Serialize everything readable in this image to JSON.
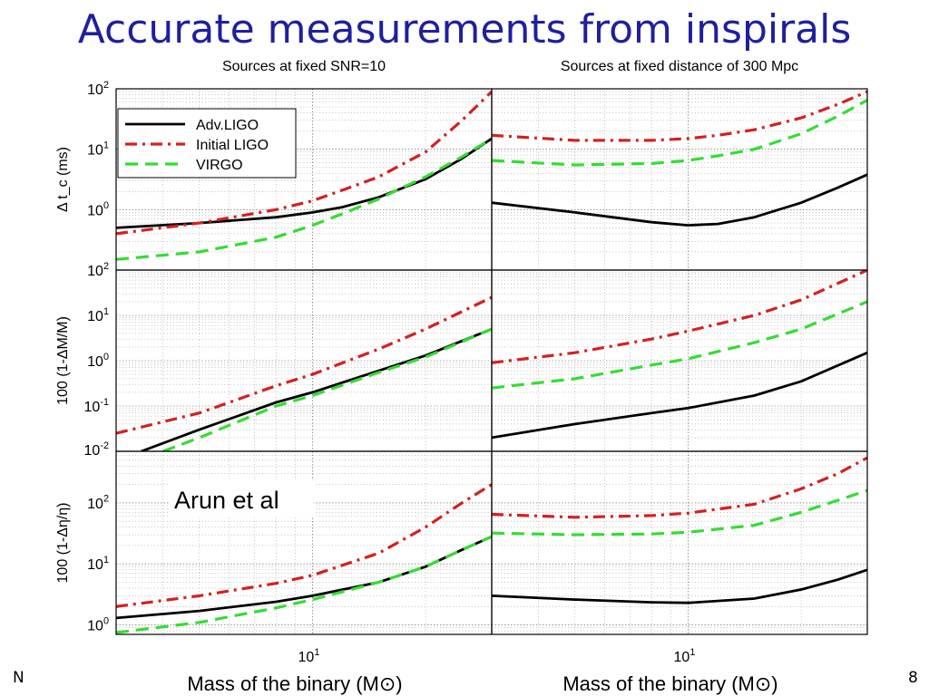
{
  "slide": {
    "title": "Accurate measurements from inspirals",
    "annotation": "Arun et al",
    "footer_left": "N",
    "footer_right": "8"
  },
  "colors": {
    "title": "#1f1f9f",
    "adv_ligo": "#000000",
    "initial_ligo": "#d42020",
    "virgo": "#33dd33"
  },
  "chart_data": [
    {
      "type": "line",
      "panel": "top-left",
      "title": "Sources at fixed SNR=10",
      "ylabel": "Δ t_c (ms)",
      "xscale": "log",
      "yscale": "log",
      "xlim": [
        3,
        30
      ],
      "ylim": [
        0.1,
        100
      ],
      "ytick_labels": [
        "10^0",
        "10^1",
        "10^2"
      ],
      "grid": true,
      "legend": "top-left",
      "legend_entries": [
        "Adv.LIGO",
        "Initial LIGO",
        "VIRGO"
      ],
      "series": [
        {
          "name": "Adv.LIGO",
          "x": [
            3,
            5,
            8,
            10,
            12,
            15,
            20,
            25,
            30
          ],
          "y": [
            0.5,
            0.6,
            0.75,
            0.9,
            1.1,
            1.6,
            3.2,
            7,
            15
          ]
        },
        {
          "name": "Initial LIGO",
          "x": [
            3,
            5,
            8,
            10,
            12,
            15,
            20,
            25,
            30
          ],
          "y": [
            0.4,
            0.6,
            1.0,
            1.4,
            2.1,
            3.5,
            9,
            30,
            90
          ]
        },
        {
          "name": "VIRGO",
          "x": [
            3,
            5,
            8,
            10,
            12,
            15,
            20,
            25,
            30
          ],
          "y": [
            0.15,
            0.2,
            0.35,
            0.55,
            0.85,
            1.5,
            3.5,
            7.5,
            15
          ]
        }
      ]
    },
    {
      "type": "line",
      "panel": "top-right",
      "title": "Sources at fixed distance of 300 Mpc",
      "xscale": "log",
      "yscale": "log",
      "xlim": [
        3,
        30
      ],
      "ylim": [
        0.1,
        100
      ],
      "grid": true,
      "series": [
        {
          "name": "Adv.LIGO",
          "x": [
            3,
            5,
            8,
            10,
            12,
            15,
            20,
            25,
            30
          ],
          "y": [
            1.3,
            0.9,
            0.62,
            0.55,
            0.58,
            0.75,
            1.3,
            2.3,
            3.8
          ]
        },
        {
          "name": "Initial LIGO",
          "x": [
            3,
            5,
            8,
            10,
            12,
            15,
            20,
            25,
            30
          ],
          "y": [
            17,
            14,
            14,
            15,
            17,
            21,
            33,
            55,
            90
          ]
        },
        {
          "name": "VIRGO",
          "x": [
            3,
            5,
            8,
            10,
            12,
            15,
            20,
            25,
            30
          ],
          "y": [
            6.5,
            5.5,
            5.8,
            6.5,
            7.8,
            10,
            18,
            35,
            65
          ]
        }
      ]
    },
    {
      "type": "line",
      "panel": "middle-left",
      "ylabel": "100 (1-ΔM/M)",
      "xscale": "log",
      "yscale": "log",
      "xlim": [
        3,
        30
      ],
      "ylim": [
        0.01,
        100
      ],
      "ytick_labels": [
        "10^-2",
        "10^-1",
        "10^0",
        "10^1",
        "10^2"
      ],
      "grid": true,
      "series": [
        {
          "name": "Adv.LIGO",
          "x": [
            3.5,
            5,
            8,
            10,
            15,
            20,
            30
          ],
          "y": [
            0.01,
            0.03,
            0.12,
            0.2,
            0.6,
            1.3,
            5
          ]
        },
        {
          "name": "Initial LIGO",
          "x": [
            3,
            5,
            8,
            10,
            15,
            20,
            30
          ],
          "y": [
            0.025,
            0.07,
            0.28,
            0.5,
            1.8,
            5,
            25
          ]
        },
        {
          "name": "VIRGO",
          "x": [
            4,
            5,
            8,
            10,
            15,
            20,
            30
          ],
          "y": [
            0.01,
            0.02,
            0.1,
            0.17,
            0.55,
            1.2,
            5
          ]
        }
      ]
    },
    {
      "type": "line",
      "panel": "middle-right",
      "xscale": "log",
      "yscale": "log",
      "xlim": [
        3,
        30
      ],
      "ylim": [
        0.01,
        100
      ],
      "grid": true,
      "series": [
        {
          "name": "Adv.LIGO",
          "x": [
            3,
            5,
            8,
            10,
            15,
            20,
            30
          ],
          "y": [
            0.02,
            0.04,
            0.07,
            0.09,
            0.17,
            0.35,
            1.5
          ]
        },
        {
          "name": "Initial LIGO",
          "x": [
            3,
            5,
            8,
            10,
            15,
            20,
            30
          ],
          "y": [
            0.9,
            1.5,
            3,
            4.5,
            10,
            22,
            100
          ]
        },
        {
          "name": "VIRGO",
          "x": [
            3,
            5,
            8,
            10,
            15,
            20,
            30
          ],
          "y": [
            0.25,
            0.4,
            0.8,
            1.1,
            2.5,
            5,
            20
          ]
        }
      ]
    },
    {
      "type": "line",
      "panel": "bottom-left",
      "xlabel": "Mass of the binary (M⊙)",
      "ylabel": "100 (1-Δη/η)",
      "xscale": "log",
      "yscale": "log",
      "xlim": [
        3,
        30
      ],
      "ylim": [
        0.7,
        700
      ],
      "xtick_labels": [
        "10^1"
      ],
      "ytick_labels": [
        "10^0",
        "10^1",
        "10^2"
      ],
      "grid": true,
      "series": [
        {
          "name": "Adv.LIGO",
          "x": [
            3,
            5,
            8,
            10,
            15,
            20,
            25,
            30
          ],
          "y": [
            1.3,
            1.7,
            2.4,
            3,
            5,
            9,
            17,
            28
          ]
        },
        {
          "name": "Initial LIGO",
          "x": [
            3,
            5,
            8,
            10,
            15,
            20,
            25,
            30
          ],
          "y": [
            2,
            3,
            4.8,
            6.5,
            15,
            40,
            100,
            200
          ]
        },
        {
          "name": "VIRGO",
          "x": [
            3,
            5,
            8,
            10,
            15,
            20,
            25,
            30
          ],
          "y": [
            0.75,
            1.1,
            1.9,
            2.6,
            5,
            9,
            17,
            28
          ]
        }
      ]
    },
    {
      "type": "line",
      "panel": "bottom-right",
      "xlabel": "Mass of the binary (M⊙)",
      "xscale": "log",
      "yscale": "log",
      "xlim": [
        3,
        30
      ],
      "ylim": [
        0.7,
        700
      ],
      "xtick_labels": [
        "10^1"
      ],
      "grid": true,
      "series": [
        {
          "name": "Adv.LIGO",
          "x": [
            3,
            5,
            8,
            10,
            15,
            20,
            25,
            30
          ],
          "y": [
            3,
            2.6,
            2.35,
            2.3,
            2.7,
            3.8,
            5.5,
            8
          ]
        },
        {
          "name": "Initial LIGO",
          "x": [
            3,
            5,
            8,
            10,
            15,
            20,
            25,
            30
          ],
          "y": [
            65,
            58,
            62,
            68,
            95,
            170,
            300,
            550
          ]
        },
        {
          "name": "VIRGO",
          "x": [
            3,
            5,
            8,
            10,
            15,
            20,
            25,
            30
          ],
          "y": [
            32,
            30,
            31,
            33,
            43,
            70,
            110,
            160
          ]
        }
      ]
    }
  ]
}
